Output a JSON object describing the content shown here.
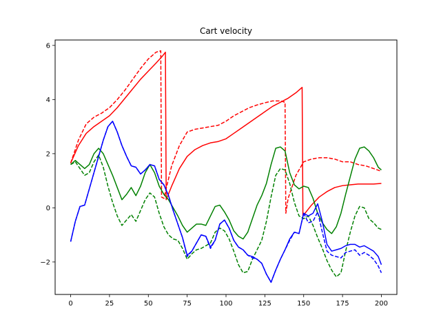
{
  "chart_data": {
    "type": "line",
    "title": "Cart velocity",
    "xlabel": "",
    "ylabel": "",
    "xlim": [
      -10,
      210
    ],
    "ylim": [
      -3.2,
      6.2
    ],
    "xticks": [
      0,
      25,
      50,
      75,
      100,
      125,
      150,
      175,
      200
    ],
    "yticks": [
      -2,
      0,
      2,
      4,
      6
    ],
    "grid": false,
    "legend": "none",
    "series": [
      {
        "color": "#ff0000",
        "style": "dashed",
        "x": [
          0,
          5,
          10,
          15,
          20,
          25,
          30,
          35,
          40,
          45,
          50,
          55,
          58,
          58.5,
          60,
          65,
          70,
          75,
          80,
          85,
          90,
          95,
          100,
          105,
          110,
          115,
          120,
          125,
          130,
          135,
          138,
          138.5,
          140,
          145,
          150,
          155,
          160,
          165,
          170,
          175,
          180,
          185,
          190,
          195,
          200
        ],
        "y": [
          1.65,
          2.5,
          3.1,
          3.35,
          3.5,
          3.7,
          4.0,
          4.35,
          4.75,
          5.15,
          5.5,
          5.75,
          5.8,
          0.4,
          0.35,
          1.55,
          2.3,
          2.8,
          2.9,
          2.95,
          3.0,
          3.05,
          3.2,
          3.4,
          3.55,
          3.7,
          3.8,
          3.88,
          3.95,
          3.95,
          3.9,
          -0.2,
          0.35,
          1.2,
          1.7,
          1.8,
          1.85,
          1.85,
          1.8,
          1.7,
          1.7,
          1.6,
          1.55,
          1.45,
          1.35
        ]
      },
      {
        "color": "#ff0000",
        "style": "solid",
        "x": [
          0,
          5,
          10,
          15,
          20,
          25,
          30,
          35,
          40,
          45,
          50,
          55,
          59,
          61,
          61.5,
          65,
          70,
          75,
          80,
          85,
          90,
          95,
          100,
          105,
          110,
          115,
          120,
          125,
          130,
          135,
          140,
          145,
          149,
          149.5,
          155,
          160,
          165,
          170,
          175,
          180,
          185,
          190,
          195,
          200
        ],
        "y": [
          1.65,
          2.3,
          2.75,
          3.0,
          3.2,
          3.4,
          3.7,
          4.05,
          4.4,
          4.75,
          5.05,
          5.35,
          5.6,
          5.75,
          0.3,
          0.8,
          1.45,
          1.9,
          2.15,
          2.3,
          2.4,
          2.45,
          2.55,
          2.75,
          2.95,
          3.15,
          3.35,
          3.55,
          3.75,
          3.9,
          4.05,
          4.25,
          4.45,
          -0.3,
          0.1,
          0.4,
          0.6,
          0.75,
          0.82,
          0.85,
          0.88,
          0.88,
          0.88,
          0.9
        ]
      },
      {
        "color": "#008000",
        "style": "dashed",
        "x": [
          0,
          3,
          6,
          9,
          12,
          15,
          18,
          21,
          24,
          27,
          30,
          33,
          36,
          39,
          42,
          45,
          48,
          51,
          54,
          57,
          60,
          63,
          66,
          69,
          72,
          75,
          78,
          81,
          84,
          87,
          90,
          93,
          96,
          99,
          102,
          105,
          108,
          111,
          114,
          117,
          120,
          123,
          126,
          129,
          132,
          135,
          138,
          141,
          144,
          147,
          150,
          153,
          156,
          159,
          162,
          165,
          168,
          171,
          174,
          177,
          180,
          183,
          186,
          189,
          192,
          195,
          198,
          200
        ],
        "y": [
          1.6,
          1.7,
          1.45,
          1.2,
          1.3,
          1.7,
          1.95,
          1.5,
          0.8,
          0.2,
          -0.3,
          -0.65,
          -0.45,
          -0.25,
          -0.5,
          -0.1,
          0.3,
          0.55,
          0.4,
          -0.2,
          -0.7,
          -1.0,
          -1.15,
          -1.2,
          -1.5,
          -1.9,
          -1.7,
          -1.55,
          -1.5,
          -1.4,
          -1.3,
          -0.9,
          -0.75,
          -0.85,
          -1.15,
          -1.6,
          -2.1,
          -2.4,
          -2.35,
          -1.9,
          -1.55,
          -1.2,
          -0.5,
          0.4,
          1.2,
          1.45,
          1.4,
          0.9,
          0.2,
          -0.3,
          -0.4,
          -0.3,
          -0.65,
          -1.1,
          -1.5,
          -1.95,
          -2.3,
          -2.55,
          -2.4,
          -1.6,
          -0.9,
          -0.3,
          0.05,
          0.0,
          -0.4,
          -0.55,
          -0.75,
          -0.8
        ]
      },
      {
        "color": "#008000",
        "style": "solid",
        "x": [
          0,
          3,
          6,
          9,
          12,
          15,
          18,
          21,
          24,
          27,
          30,
          33,
          36,
          39,
          42,
          45,
          48,
          51,
          54,
          57,
          60,
          63,
          66,
          69,
          72,
          75,
          78,
          81,
          84,
          87,
          90,
          93,
          96,
          99,
          102,
          105,
          108,
          111,
          114,
          117,
          120,
          123,
          126,
          129,
          132,
          135,
          138,
          141,
          144,
          147,
          150,
          153,
          156,
          159,
          162,
          165,
          168,
          171,
          174,
          177,
          180,
          183,
          186,
          189,
          192,
          195,
          198,
          200
        ],
        "y": [
          1.6,
          1.75,
          1.6,
          1.45,
          1.6,
          2.0,
          2.2,
          2.0,
          1.6,
          1.2,
          0.75,
          0.3,
          0.5,
          0.75,
          0.45,
          0.8,
          1.3,
          1.6,
          1.3,
          0.8,
          0.5,
          0.3,
          0.0,
          -0.3,
          -0.65,
          -0.9,
          -0.75,
          -0.6,
          -0.6,
          -0.65,
          -0.3,
          0.05,
          0.1,
          -0.15,
          -0.45,
          -0.85,
          -1.05,
          -1.15,
          -0.9,
          -0.4,
          0.1,
          0.45,
          0.9,
          1.6,
          2.2,
          2.25,
          2.1,
          1.3,
          0.85,
          0.7,
          0.8,
          0.75,
          0.35,
          -0.2,
          -0.55,
          -0.8,
          -0.95,
          -0.7,
          -0.2,
          0.5,
          1.15,
          1.8,
          2.2,
          2.25,
          2.1,
          1.85,
          1.5,
          1.4
        ]
      },
      {
        "color": "#0000ff",
        "style": "dashed",
        "x": [
          0,
          3,
          6,
          9,
          12,
          15,
          18,
          21,
          24,
          27,
          30,
          33,
          36,
          39,
          42,
          45,
          48,
          51,
          54,
          57,
          60,
          63,
          66,
          69,
          72,
          75,
          78,
          81,
          84,
          87,
          90,
          93,
          96,
          99,
          102,
          105,
          108,
          111,
          114,
          117,
          120,
          123,
          126,
          129,
          132,
          135,
          138,
          141,
          144,
          147,
          150,
          153,
          156,
          159,
          162,
          165,
          168,
          171,
          174,
          177,
          180,
          183,
          186,
          189,
          192,
          195,
          198,
          200
        ],
        "y": [
          -1.25,
          -0.5,
          0.05,
          0.1,
          0.7,
          1.3,
          1.9,
          2.5,
          3.0,
          3.2,
          2.8,
          2.3,
          1.9,
          1.55,
          1.5,
          1.25,
          1.4,
          1.6,
          1.55,
          1.05,
          0.85,
          0.45,
          -0.1,
          -0.6,
          -1.1,
          -1.8,
          -1.6,
          -1.3,
          -1.0,
          -1.05,
          -1.5,
          -1.2,
          -0.6,
          -0.45,
          -0.75,
          -1.2,
          -1.45,
          -1.55,
          -1.75,
          -1.85,
          -1.9,
          -2.05,
          -2.45,
          -2.75,
          -2.3,
          -1.9,
          -1.55,
          -1.2,
          -0.9,
          -0.95,
          -0.2,
          -0.55,
          -0.5,
          -0.15,
          -0.9,
          -1.6,
          -1.75,
          -1.8,
          -1.85,
          -1.65,
          -1.6,
          -1.55,
          -1.75,
          -1.65,
          -1.75,
          -1.9,
          -2.15,
          -2.4
        ]
      },
      {
        "color": "#0000ff",
        "style": "solid",
        "x": [
          0,
          3,
          6,
          9,
          12,
          15,
          18,
          21,
          24,
          27,
          30,
          33,
          36,
          39,
          42,
          45,
          48,
          51,
          54,
          57,
          60,
          63,
          66,
          69,
          72,
          75,
          78,
          81,
          84,
          87,
          90,
          93,
          96,
          99,
          102,
          105,
          108,
          111,
          114,
          117,
          120,
          123,
          126,
          129,
          132,
          135,
          138,
          141,
          144,
          147,
          150,
          153,
          156,
          159,
          162,
          165,
          168,
          171,
          174,
          177,
          180,
          183,
          186,
          189,
          192,
          195,
          198,
          200
        ],
        "y": [
          -1.25,
          -0.5,
          0.05,
          0.1,
          0.7,
          1.3,
          1.9,
          2.5,
          3.0,
          3.2,
          2.8,
          2.3,
          1.9,
          1.55,
          1.5,
          1.25,
          1.4,
          1.6,
          1.55,
          1.05,
          0.85,
          0.45,
          -0.1,
          -0.6,
          -1.1,
          -1.75,
          -1.6,
          -1.3,
          -1.0,
          -1.05,
          -1.45,
          -1.2,
          -0.6,
          -0.45,
          -0.75,
          -1.2,
          -1.45,
          -1.55,
          -1.75,
          -1.8,
          -1.9,
          -2.05,
          -2.45,
          -2.75,
          -2.3,
          -1.9,
          -1.55,
          -1.15,
          -0.9,
          -0.95,
          -0.2,
          -0.3,
          -0.2,
          0.15,
          -0.5,
          -1.35,
          -1.6,
          -1.55,
          -1.5,
          -1.4,
          -1.35,
          -1.35,
          -1.45,
          -1.4,
          -1.5,
          -1.6,
          -1.8,
          -2.1
        ]
      }
    ]
  }
}
